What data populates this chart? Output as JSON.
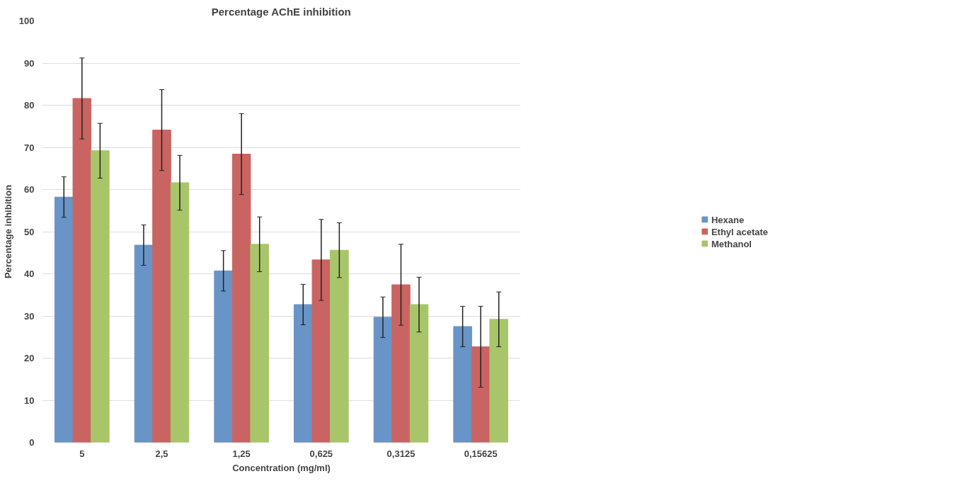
{
  "chart_data": {
    "type": "bar",
    "title": "Percentage AChE inhibition",
    "xlabel": "Concentration (mg/ml)",
    "ylabel": "Percentage inhibition",
    "categories": [
      "5",
      "2,5",
      "1,25",
      "0,625",
      "0,3125",
      "0,15625"
    ],
    "series": [
      {
        "name": "Hexane",
        "color": "#6994c8",
        "values": [
          58.2,
          46.8,
          40.7,
          32.7,
          29.7,
          27.5
        ],
        "errors": [
          4.8,
          4.8,
          4.8,
          4.8,
          4.8,
          4.8
        ]
      },
      {
        "name": "Ethyl acetate",
        "color": "#c96462",
        "values": [
          81.6,
          74.1,
          68.4,
          43.3,
          37.4,
          22.7
        ],
        "errors": [
          9.6,
          9.6,
          9.6,
          9.6,
          9.6,
          9.6
        ]
      },
      {
        "name": "Methanol",
        "color": "#a8c56a",
        "values": [
          69.2,
          61.6,
          47.0,
          45.6,
          32.7,
          29.2
        ],
        "errors": [
          6.5,
          6.5,
          6.5,
          6.5,
          6.5,
          6.5
        ]
      }
    ],
    "ylim": [
      0,
      100
    ],
    "yticks": [
      0,
      10,
      20,
      30,
      40,
      50,
      60,
      70,
      80,
      90,
      100
    ],
    "grid": "y",
    "legend": "right"
  }
}
